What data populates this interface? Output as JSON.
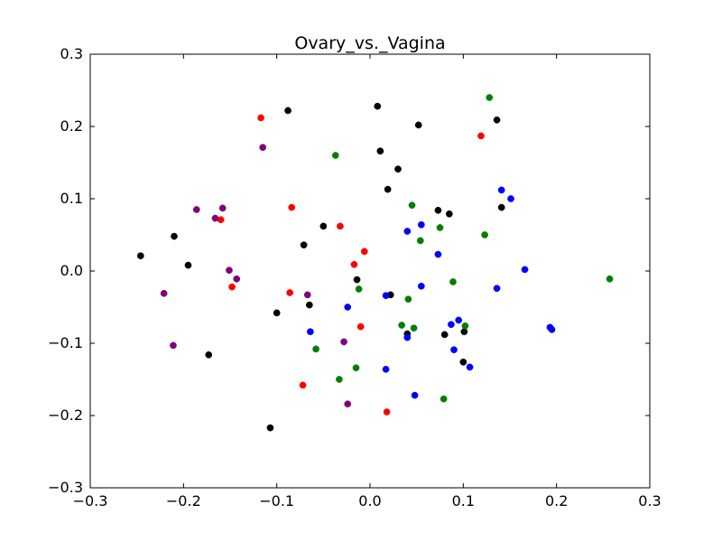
{
  "chart_data": {
    "type": "scatter",
    "title": "Ovary_vs._Vagina",
    "xlabel": "",
    "ylabel": "",
    "xlim": [
      -0.3,
      0.3
    ],
    "ylim": [
      -0.3,
      0.3
    ],
    "xticks": [
      "−0.3",
      "−0.2",
      "−0.1",
      "0.0",
      "0.1",
      "0.2",
      "0.3"
    ],
    "yticks": [
      "−0.3",
      "−0.2",
      "−0.1",
      "0.0",
      "0.1",
      "0.2",
      "0.3"
    ],
    "xtick_values": [
      -0.3,
      -0.2,
      -0.1,
      0.0,
      0.1,
      0.2,
      0.3
    ],
    "ytick_values": [
      -0.3,
      -0.2,
      -0.1,
      0.0,
      0.1,
      0.2,
      0.3
    ],
    "grid": false,
    "legend": null,
    "series": [
      {
        "color": "#000000",
        "points": [
          [
            -0.088,
            0.222
          ],
          [
            0.008,
            0.228
          ],
          [
            0.052,
            0.202
          ],
          [
            0.136,
            0.209
          ],
          [
            0.011,
            0.166
          ],
          [
            0.03,
            0.141
          ],
          [
            0.019,
            0.113
          ],
          [
            0.073,
            0.084
          ],
          [
            0.085,
            0.079
          ],
          [
            0.141,
            0.088
          ],
          [
            -0.05,
            0.062
          ],
          [
            -0.21,
            0.048
          ],
          [
            -0.071,
            0.036
          ],
          [
            -0.246,
            0.021
          ],
          [
            -0.195,
            0.008
          ],
          [
            -0.014,
            -0.012
          ],
          [
            0.022,
            -0.033
          ],
          [
            -0.1,
            -0.058
          ],
          [
            -0.065,
            -0.047
          ],
          [
            0.04,
            -0.087
          ],
          [
            0.08,
            -0.088
          ],
          [
            0.101,
            -0.084
          ],
          [
            -0.173,
            -0.116
          ],
          [
            0.1,
            -0.126
          ],
          [
            -0.107,
            -0.217
          ]
        ]
      },
      {
        "color": "#ff0000",
        "points": [
          [
            -0.117,
            0.212
          ],
          [
            0.119,
            0.187
          ],
          [
            -0.084,
            0.088
          ],
          [
            -0.16,
            0.071
          ],
          [
            -0.032,
            0.062
          ],
          [
            -0.006,
            0.027
          ],
          [
            -0.017,
            0.009
          ],
          [
            -0.148,
            -0.022
          ],
          [
            -0.086,
            -0.03
          ],
          [
            -0.01,
            -0.077
          ],
          [
            -0.072,
            -0.158
          ],
          [
            0.018,
            -0.195
          ]
        ]
      },
      {
        "color": "#800080",
        "points": [
          [
            -0.115,
            0.171
          ],
          [
            -0.186,
            0.085
          ],
          [
            -0.158,
            0.087
          ],
          [
            -0.166,
            0.073
          ],
          [
            -0.151,
            0.001
          ],
          [
            -0.143,
            -0.011
          ],
          [
            -0.221,
            -0.031
          ],
          [
            -0.067,
            -0.033
          ],
          [
            -0.028,
            -0.098
          ],
          [
            -0.211,
            -0.103
          ],
          [
            -0.024,
            -0.184
          ]
        ]
      },
      {
        "color": "#0000ff",
        "points": [
          [
            0.141,
            0.112
          ],
          [
            0.151,
            0.1
          ],
          [
            0.055,
            0.064
          ],
          [
            0.04,
            0.055
          ],
          [
            0.073,
            0.023
          ],
          [
            0.166,
            0.002
          ],
          [
            0.055,
            -0.021
          ],
          [
            0.136,
            -0.024
          ],
          [
            0.017,
            -0.034
          ],
          [
            -0.024,
            -0.05
          ],
          [
            -0.064,
            -0.084
          ],
          [
            0.087,
            -0.074
          ],
          [
            0.095,
            -0.068
          ],
          [
            0.04,
            -0.092
          ],
          [
            0.193,
            -0.078
          ],
          [
            0.195,
            -0.081
          ],
          [
            0.09,
            -0.109
          ],
          [
            0.107,
            -0.133
          ],
          [
            0.017,
            -0.136
          ],
          [
            0.048,
            -0.172
          ]
        ]
      },
      {
        "color": "#008000",
        "points": [
          [
            0.128,
            0.24
          ],
          [
            -0.037,
            0.16
          ],
          [
            0.045,
            0.091
          ],
          [
            0.075,
            0.06
          ],
          [
            0.054,
            0.042
          ],
          [
            0.123,
            0.05
          ],
          [
            0.089,
            -0.015
          ],
          [
            0.257,
            -0.011
          ],
          [
            -0.012,
            -0.025
          ],
          [
            0.041,
            -0.039
          ],
          [
            0.034,
            -0.075
          ],
          [
            0.047,
            -0.079
          ],
          [
            0.102,
            -0.076
          ],
          [
            -0.058,
            -0.108
          ],
          [
            -0.015,
            -0.134
          ],
          [
            -0.033,
            -0.15
          ],
          [
            0.079,
            -0.177
          ]
        ]
      }
    ]
  }
}
